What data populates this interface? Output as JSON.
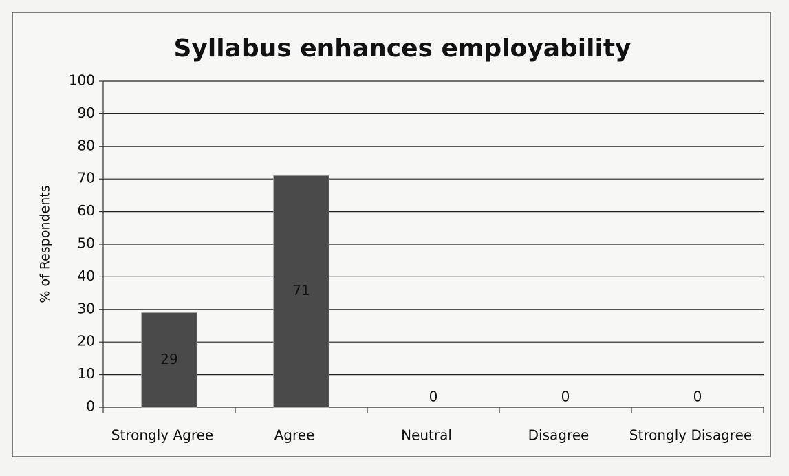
{
  "chart_data": {
    "type": "bar",
    "title": "Syllabus enhances employability",
    "y_label": "% of Respondents",
    "categories": [
      "Strongly Agree",
      "Agree",
      "Neutral",
      "Disagree",
      "Strongly Disagree"
    ],
    "values": [
      29,
      71,
      0,
      0,
      0
    ],
    "color": "#4a4a4a",
    "ylim": [
      0,
      100
    ],
    "yticks": [
      0,
      10,
      20,
      30,
      40,
      50,
      60,
      70,
      80,
      90,
      100
    ],
    "grid": true,
    "data_labels": true
  }
}
